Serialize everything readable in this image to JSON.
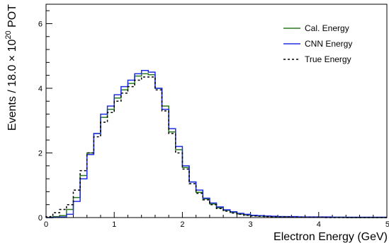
{
  "chart_data": {
    "type": "line",
    "xlabel": "Electron Energy (GeV)",
    "ylabel_prefix": "Events / 18.0 ",
    "ylabel_times": "×",
    "ylabel_base": " 10",
    "ylabel_exp": "20",
    "ylabel_suffix": " POT",
    "xlim": [
      0,
      5
    ],
    "ylim": [
      0,
      6.6
    ],
    "x_ticks": [
      0,
      1,
      2,
      3,
      4,
      5
    ],
    "y_ticks": [
      0,
      2,
      4,
      6
    ],
    "legend_position": "top-right",
    "bin_edges": [
      0,
      0.1,
      0.2,
      0.3,
      0.4,
      0.5,
      0.6,
      0.7,
      0.8,
      0.9,
      1.0,
      1.1,
      1.2,
      1.3,
      1.4,
      1.5,
      1.6,
      1.7,
      1.8,
      1.9,
      2.0,
      2.1,
      2.2,
      2.3,
      2.4,
      2.5,
      2.6,
      2.7,
      2.8,
      2.9,
      3.0,
      3.1,
      3.2,
      3.3,
      3.4,
      3.5,
      3.6,
      3.7,
      3.8,
      3.9,
      4.0,
      4.1,
      4.2,
      4.3,
      4.4,
      4.5,
      4.6,
      4.7,
      4.8,
      4.9,
      5.0
    ],
    "series": [
      {
        "name": "Cal. Energy",
        "color": "#2a7a1f",
        "dash": "",
        "values": [
          0.0,
          0.03,
          0.06,
          0.25,
          0.62,
          1.3,
          2.0,
          2.6,
          3.1,
          3.35,
          3.7,
          3.95,
          4.15,
          4.38,
          4.45,
          4.42,
          4.0,
          3.45,
          2.65,
          2.1,
          1.55,
          1.1,
          0.78,
          0.58,
          0.42,
          0.3,
          0.22,
          0.16,
          0.11,
          0.08,
          0.06,
          0.05,
          0.04,
          0.03,
          0.03,
          0.02,
          0.02,
          0.02,
          0.01,
          0.01,
          0.01,
          0.01,
          0.01,
          0.01,
          0.0,
          0.0,
          0.0,
          0.0,
          0.0,
          0.0
        ]
      },
      {
        "name": "CNN Energy",
        "color": "#1f2ee0",
        "dash": "",
        "values": [
          0.0,
          0.01,
          0.02,
          0.1,
          0.5,
          1.2,
          1.95,
          2.6,
          3.2,
          3.45,
          3.8,
          4.05,
          4.25,
          4.45,
          4.55,
          4.5,
          4.0,
          3.35,
          2.75,
          2.2,
          1.6,
          1.1,
          0.85,
          0.6,
          0.45,
          0.33,
          0.24,
          0.18,
          0.13,
          0.1,
          0.07,
          0.06,
          0.05,
          0.04,
          0.03,
          0.03,
          0.03,
          0.02,
          0.02,
          0.02,
          0.02,
          0.02,
          0.01,
          0.01,
          0.01,
          0.01,
          0.01,
          0.01,
          0.01,
          0.01
        ]
      },
      {
        "name": "True Energy",
        "color": "#000000",
        "dash": "3,3",
        "values": [
          0.03,
          0.15,
          0.25,
          0.4,
          0.85,
          1.45,
          2.0,
          2.5,
          2.95,
          3.25,
          3.6,
          3.85,
          4.05,
          4.25,
          4.35,
          4.35,
          3.95,
          3.3,
          2.6,
          2.0,
          1.5,
          1.05,
          0.75,
          0.55,
          0.4,
          0.28,
          0.2,
          0.14,
          0.1,
          0.07,
          0.05,
          0.04,
          0.03,
          0.02,
          0.02,
          0.02,
          0.01,
          0.01,
          0.01,
          0.01,
          0.01,
          0.0,
          0.0,
          0.0,
          0.0,
          0.0,
          0.0,
          0.0,
          0.0,
          0.0
        ]
      }
    ]
  }
}
